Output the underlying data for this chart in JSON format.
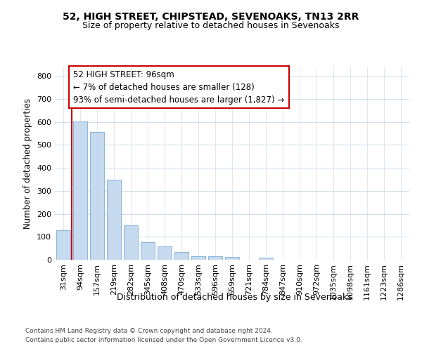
{
  "title1": "52, HIGH STREET, CHIPSTEAD, SEVENOAKS, TN13 2RR",
  "title2": "Size of property relative to detached houses in Sevenoaks",
  "xlabel": "Distribution of detached houses by size in Sevenoaks",
  "ylabel": "Number of detached properties",
  "categories": [
    "31sqm",
    "94sqm",
    "157sqm",
    "219sqm",
    "282sqm",
    "345sqm",
    "408sqm",
    "470sqm",
    "533sqm",
    "596sqm",
    "659sqm",
    "721sqm",
    "784sqm",
    "847sqm",
    "910sqm",
    "972sqm",
    "1035sqm",
    "1098sqm",
    "1161sqm",
    "1223sqm",
    "1286sqm"
  ],
  "values": [
    128,
    603,
    556,
    349,
    150,
    76,
    57,
    34,
    15,
    14,
    11,
    0,
    8,
    0,
    0,
    0,
    0,
    0,
    0,
    0,
    0
  ],
  "bar_color": "#c5d9ef",
  "bar_edge_color": "#7aadd4",
  "vline_color": "#cc0000",
  "annotation_text": "52 HIGH STREET: 96sqm\n← 7% of detached houses are smaller (128)\n93% of semi-detached houses are larger (1,827) →",
  "annotation_edge_color": "#cc0000",
  "ylim_max": 840,
  "yticks": [
    0,
    100,
    200,
    300,
    400,
    500,
    600,
    700,
    800
  ],
  "grid_color": "#d0dcea",
  "bg_color": "#ffffff",
  "footer_line1": "Contains HM Land Registry data © Crown copyright and database right 2024.",
  "footer_line2": "Contains public sector information licensed under the Open Government Licence v3.0."
}
